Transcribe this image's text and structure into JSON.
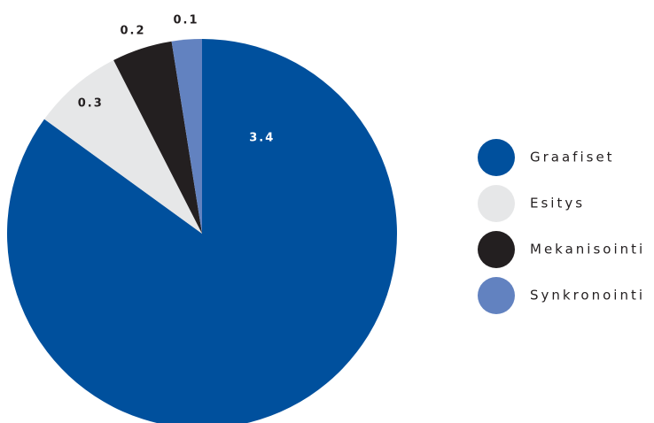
{
  "chart_data": {
    "type": "pie",
    "categories": [
      "Graafiset",
      "Esitys",
      "Mekanisointi",
      "Synkronointi"
    ],
    "values": [
      3.4,
      0.3,
      0.2,
      0.1
    ],
    "colors": [
      "#00509d",
      "#e6e7e8",
      "#231f20",
      "#6282c0"
    ],
    "label_colors": [
      "#ffffff",
      "#231f20",
      "#231f20",
      "#231f20"
    ],
    "data_labels": [
      "3.4",
      "0.3",
      "0.2",
      "0.1"
    ],
    "start_angle_deg": 0,
    "direction": "clockwise",
    "legend": "right"
  }
}
